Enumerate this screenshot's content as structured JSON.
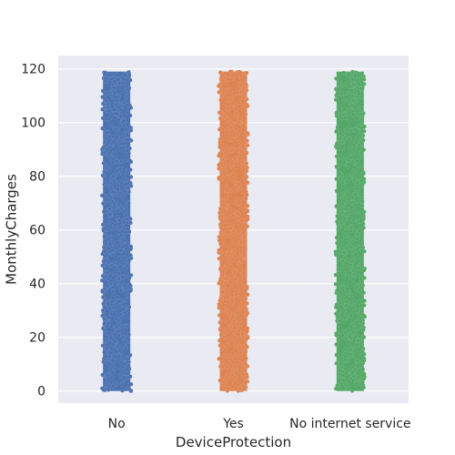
{
  "chart_data": {
    "type": "scatter",
    "subtype": "strip",
    "title": "",
    "xlabel": "DeviceProtection",
    "ylabel": "MonthlyCharges",
    "categories": [
      "No",
      "Yes",
      "No internet service"
    ],
    "ylim": [
      -4.5,
      125
    ],
    "yticks": [
      0,
      20,
      40,
      60,
      80,
      100,
      120
    ],
    "grid": true,
    "legend": "none",
    "series": [
      {
        "category": "No",
        "y_min": 0,
        "y_max": 119,
        "color": "#4c72b0"
      },
      {
        "category": "Yes",
        "y_min": 0,
        "y_max": 119,
        "color": "#dd8452"
      },
      {
        "category": "No internet service",
        "y_min": 0,
        "y_max": 119,
        "color": "#55a868"
      }
    ],
    "background_color": "#eaeaf2",
    "grid_color": "#ffffff"
  }
}
